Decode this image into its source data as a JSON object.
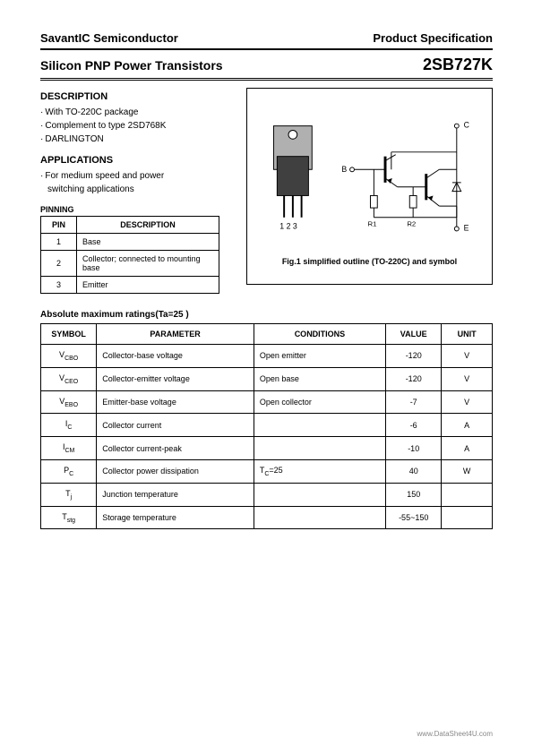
{
  "header": {
    "company": "SavantIC Semiconductor",
    "doc_type": "Product Specification",
    "product_title": "Silicon PNP Power Transistors",
    "part_number": "2SB727K"
  },
  "description": {
    "heading": "DESCRIPTION",
    "lines": [
      "With TO-220C package",
      "Complement to type 2SD768K",
      "DARLINGTON"
    ]
  },
  "applications": {
    "heading": "APPLICATIONS",
    "lines": [
      "For medium speed and power",
      "switching applications"
    ]
  },
  "pinning": {
    "label": "PINNING",
    "columns": [
      "PIN",
      "DESCRIPTION"
    ],
    "rows": [
      {
        "pin": "1",
        "desc": "Base"
      },
      {
        "pin": "2",
        "desc": "Collector; connected to mounting base"
      },
      {
        "pin": "3",
        "desc": "Emitter"
      }
    ]
  },
  "figure": {
    "caption": "Fig.1 simplified outline (TO-220C) and symbol",
    "pin_labels": "1  2  3",
    "terminal_c": "C",
    "terminal_b": "B",
    "terminal_e": "E",
    "r1": "R1",
    "r2": "R2",
    "package_fill": "#b0b0b0",
    "stroke": "#000000"
  },
  "ratings": {
    "label": "Absolute maximum ratings(Ta=25 )",
    "columns": [
      "SYMBOL",
      "PARAMETER",
      "CONDITIONS",
      "VALUE",
      "UNIT"
    ],
    "rows": [
      {
        "sym_main": "V",
        "sym_sub": "CBO",
        "param": "Collector-base voltage",
        "cond": "Open emitter",
        "value": "-120",
        "unit": "V"
      },
      {
        "sym_main": "V",
        "sym_sub": "CEO",
        "param": "Collector-emitter voltage",
        "cond": "Open base",
        "value": "-120",
        "unit": "V"
      },
      {
        "sym_main": "V",
        "sym_sub": "EBO",
        "param": "Emitter-base voltage",
        "cond": "Open collector",
        "value": "-7",
        "unit": "V"
      },
      {
        "sym_main": "I",
        "sym_sub": "C",
        "param": "Collector current",
        "cond": "",
        "value": "-6",
        "unit": "A"
      },
      {
        "sym_main": "I",
        "sym_sub": "CM",
        "param": "Collector current-peak",
        "cond": "",
        "value": "-10",
        "unit": "A"
      },
      {
        "sym_main": "P",
        "sym_sub": "C",
        "param": "Collector power dissipation",
        "cond": "T_C=25",
        "value": "40",
        "unit": "W"
      },
      {
        "sym_main": "T",
        "sym_sub": "j",
        "param": "Junction temperature",
        "cond": "",
        "value": "150",
        "unit": ""
      },
      {
        "sym_main": "T",
        "sym_sub": "stg",
        "param": "Storage temperature",
        "cond": "",
        "value": "-55~150",
        "unit": ""
      }
    ]
  },
  "footer": "www.DataSheet4U.com"
}
